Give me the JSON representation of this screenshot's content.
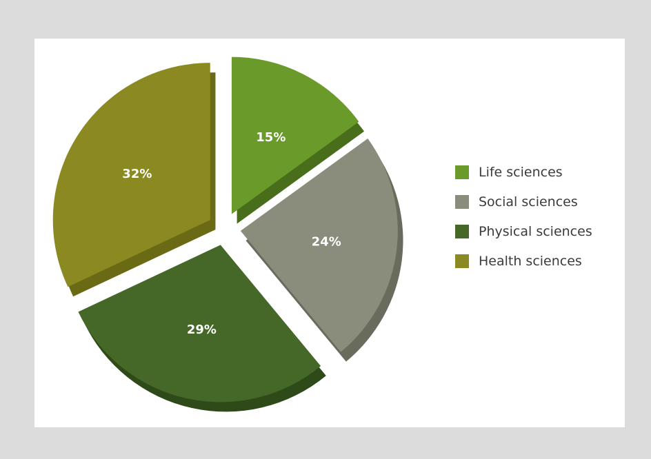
{
  "chart_data": {
    "type": "pie",
    "title": "",
    "categories": [
      "Life sciences",
      "Social sciences",
      "Physical sciences",
      "Health sciences"
    ],
    "values": [
      15,
      24,
      29,
      32
    ],
    "value_labels": [
      "15%",
      "24%",
      "29%",
      "32%"
    ],
    "unit": "%",
    "legend_placement": "right",
    "exploded": true,
    "three_d": true
  },
  "colors": {
    "page_background": "#dcdcdd",
    "panel_background": "#ffffff",
    "slices": [
      "#6a9a2a",
      "#8a8d7c",
      "#456728",
      "#8b8a22"
    ],
    "slice_sides": [
      "#486e1c",
      "#696b5d",
      "#2e4a18",
      "#6a6a15"
    ],
    "label_text": "#ffffff",
    "legend_text": "#3b3b3b"
  },
  "legend": {
    "items": [
      {
        "label": "Life sciences",
        "color": "#6a9a2a"
      },
      {
        "label": "Social sciences",
        "color": "#8a8d7c"
      },
      {
        "label": "Physical sciences",
        "color": "#456728"
      },
      {
        "label": "Health sciences",
        "color": "#8b8a22"
      }
    ]
  }
}
